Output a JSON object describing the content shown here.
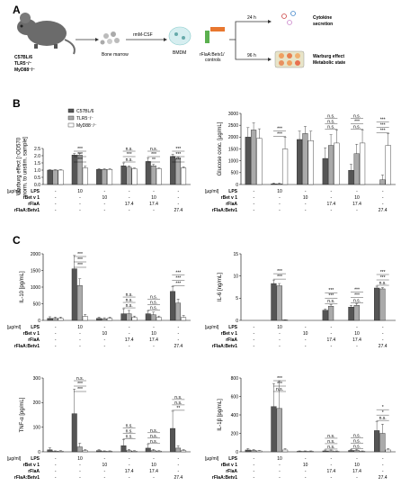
{
  "panels": {
    "a": "A",
    "b": "B",
    "c": "C"
  },
  "schema": {
    "mouse": [
      "C57BL/6",
      "TLR5⁻/⁻",
      "MyD88⁻/⁻"
    ],
    "bone_marrow": "Bone marrow",
    "rmm_csf": "rmM-CSF",
    "bmdm": "BMDM",
    "rflaa_controls": [
      "rFlaA:Betv1/",
      "controls"
    ],
    "t24": "24 h",
    "t96": "96 h",
    "cytokine": [
      "Cytokine",
      "secretion"
    ],
    "warburg": [
      "Warburg effect",
      "Metabolic state"
    ]
  },
  "treat": {
    "unit": "[µg/ml]",
    "rows": [
      "LPS",
      "rBet v 1",
      "rFlaA",
      "rFlaA:Betv1"
    ],
    "values": [
      [
        "-",
        "10",
        "-",
        "-",
        "-"
      ],
      [
        "-",
        "-",
        "10",
        "-",
        "10"
      ],
      [
        "-",
        "-",
        "-",
        "17.4",
        "17.4"
      ],
      [
        "-",
        "-",
        "-",
        "-",
        "-"
      ]
    ],
    "last_values": [
      "-",
      "-",
      "-",
      "27.4"
    ]
  },
  "colors": {
    "c57": "#555555",
    "tlr5": "#aaaaaa",
    "myd88": "#ffffff"
  },
  "legend": [
    "C57BL/6",
    "TLR5⁻/⁻",
    "MyD88⁻/⁻"
  ],
  "chart_data": [
    {
      "type": "bar",
      "id": "warburg",
      "ylabel": [
        "Warburg effect [↑OD570",
        "norm. to unstim. sample]"
      ],
      "ylim": [
        0,
        2.5
      ],
      "yticks": [
        "0.0",
        "0.5",
        "1.0",
        "1.5",
        "2.0",
        "2.5"
      ],
      "groups": 6,
      "series": [
        {
          "name": "C57BL/6",
          "values": [
            1.0,
            2.05,
            1.05,
            1.3,
            1.6,
            1.95
          ],
          "err": [
            0.03,
            0.1,
            0.05,
            0.2,
            0.25,
            0.15
          ]
        },
        {
          "name": "TLR5⁻/⁻",
          "values": [
            1.0,
            2.05,
            1.05,
            1.2,
            1.3,
            1.8
          ],
          "err": [
            0.03,
            0.1,
            0.05,
            0.1,
            0.1,
            0.1
          ]
        },
        {
          "name": "MyD88⁻/⁻",
          "values": [
            1.0,
            1.15,
            1.05,
            1.1,
            1.1,
            1.15
          ],
          "err": [
            0.03,
            0.12,
            0.05,
            0.05,
            0.05,
            0.08
          ]
        }
      ]
    },
    {
      "type": "bar",
      "id": "glucose",
      "ylabel": [
        "Glucose conc. [µg/mL]"
      ],
      "ylim": [
        0,
        3000
      ],
      "yticks": [
        "0",
        "500",
        "1000",
        "1500",
        "2000",
        "2500",
        "3000"
      ],
      "groups": 6,
      "series": [
        {
          "name": "C57BL/6",
          "values": [
            2000,
            30,
            1900,
            1100,
            600,
            0
          ],
          "err": [
            400,
            30,
            350,
            450,
            250,
            0
          ]
        },
        {
          "name": "TLR5⁻/⁻",
          "values": [
            2300,
            30,
            2150,
            1650,
            1300,
            200
          ],
          "err": [
            300,
            30,
            300,
            450,
            400,
            200
          ]
        },
        {
          "name": "MyD88⁻/⁻",
          "values": [
            1950,
            1500,
            1850,
            1750,
            1750,
            1650
          ],
          "err": [
            400,
            500,
            400,
            550,
            550,
            500
          ]
        }
      ]
    },
    {
      "type": "bar",
      "id": "il10",
      "ylabel": [
        "IL-10 [pg/mL]"
      ],
      "ylim": [
        0,
        2000
      ],
      "yticks": [
        "0",
        "500",
        "1000",
        "1500",
        "2000"
      ],
      "groups": 6,
      "series": [
        {
          "name": "C57BL/6",
          "values": [
            60,
            1550,
            60,
            200,
            200,
            870
          ],
          "err": [
            50,
            400,
            40,
            150,
            80,
            150
          ]
        },
        {
          "name": "TLR5⁻/⁻",
          "values": [
            60,
            1050,
            50,
            200,
            170,
            520
          ],
          "err": [
            40,
            200,
            30,
            100,
            80,
            120
          ]
        },
        {
          "name": "MyD88⁻/⁻",
          "values": [
            60,
            120,
            60,
            90,
            90,
            90
          ],
          "err": [
            40,
            60,
            40,
            40,
            40,
            60
          ]
        }
      ]
    },
    {
      "type": "bar",
      "id": "il6",
      "ylabel": [
        "IL-6 [ng/mL]"
      ],
      "ylim": [
        0,
        15
      ],
      "yticks": [
        "0",
        "5",
        "10",
        "15"
      ],
      "groups": 6,
      "series": [
        {
          "name": "C57BL/6",
          "values": [
            0,
            8.3,
            0,
            2.3,
            3.0,
            7.3
          ],
          "err": [
            0,
            0.8,
            0,
            0.3,
            0.4,
            0.4
          ]
        },
        {
          "name": "TLR5⁻/⁻",
          "values": [
            0,
            7.8,
            0,
            3.2,
            3.4,
            7.1
          ],
          "err": [
            0,
            0.5,
            0,
            0.4,
            0.4,
            0.3
          ]
        },
        {
          "name": "MyD88⁻/⁻",
          "values": [
            0,
            0.1,
            0,
            0,
            0,
            0
          ],
          "err": [
            0,
            0.05,
            0,
            0,
            0,
            0
          ]
        }
      ]
    },
    {
      "type": "bar",
      "id": "tnf",
      "ylabel": [
        "TNF-α [pg/mL]"
      ],
      "ylim": [
        0,
        300
      ],
      "yticks": [
        "0",
        "100",
        "200",
        "300"
      ],
      "groups": 6,
      "series": [
        {
          "name": "C57BL/6",
          "values": [
            8,
            155,
            5,
            25,
            15,
            95
          ],
          "err": [
            8,
            100,
            4,
            25,
            15,
            70
          ]
        },
        {
          "name": "TLR5⁻/⁻",
          "values": [
            2,
            20,
            2,
            5,
            5,
            15
          ],
          "err": [
            2,
            15,
            2,
            5,
            5,
            10
          ]
        },
        {
          "name": "MyD88⁻/⁻",
          "values": [
            3,
            5,
            2,
            3,
            3,
            5
          ],
          "err": [
            2,
            4,
            2,
            2,
            2,
            4
          ]
        }
      ]
    },
    {
      "type": "bar",
      "id": "il1b",
      "ylabel": [
        "IL-1β [pg/mL]"
      ],
      "ylim": [
        0,
        800
      ],
      "yticks": [
        "0",
        "200",
        "400",
        "600",
        "800"
      ],
      "groups": 6,
      "series": [
        {
          "name": "C57BL/6",
          "values": [
            20,
            490,
            5,
            10,
            15,
            230
          ],
          "err": [
            15,
            250,
            5,
            10,
            10,
            100
          ]
        },
        {
          "name": "TLR5⁻/⁻",
          "values": [
            15,
            470,
            5,
            10,
            15,
            200
          ],
          "err": [
            10,
            300,
            5,
            10,
            10,
            100
          ]
        },
        {
          "name": "MyD88⁻/⁻",
          "values": [
            10,
            20,
            5,
            5,
            5,
            20
          ],
          "err": [
            5,
            15,
            5,
            5,
            5,
            15
          ]
        }
      ]
    }
  ],
  "significance": {
    "warburg": [
      [
        1,
        [
          "***",
          "***",
          "***"
        ]
      ],
      [
        3,
        [
          "n.s.",
          "***",
          "n.s."
        ]
      ],
      [
        4,
        [
          "**",
          "***",
          "n.s."
        ]
      ],
      [
        5,
        [
          "***",
          "***",
          "***"
        ]
      ]
    ],
    "glucose": [
      [
        1,
        [
          "***",
          "***"
        ]
      ],
      [
        3,
        [
          "n.s.",
          "n.s.",
          "n.s."
        ]
      ],
      [
        4,
        [
          "n.s.",
          "***",
          "n.s."
        ]
      ],
      [
        5,
        [
          "***",
          "***",
          "***"
        ]
      ]
    ],
    "il10": [
      [
        1,
        [
          "***",
          "***",
          "***"
        ]
      ],
      [
        3,
        [
          "n.s.",
          "n.s.",
          "n.s."
        ]
      ],
      [
        4,
        [
          "n.s.",
          "n.s.",
          "n.s."
        ]
      ],
      [
        5,
        [
          "***",
          "***",
          "***"
        ]
      ]
    ],
    "il6": [
      [
        1,
        [
          "***",
          "***"
        ]
      ],
      [
        3,
        [
          "n.s.",
          "***",
          "***"
        ]
      ],
      [
        4,
        [
          "n.s.",
          "***",
          "***"
        ]
      ],
      [
        5,
        [
          "n.s.",
          "***",
          "***"
        ]
      ]
    ],
    "tnf": [
      [
        1,
        [
          "***",
          "***",
          "n.s."
        ]
      ],
      [
        3,
        [
          "n.s.",
          "n.s.",
          "n.s."
        ]
      ],
      [
        4,
        [
          "n.s.",
          "n.s.",
          "n.s."
        ]
      ],
      [
        5,
        [
          "**",
          "n.s.",
          "n.s."
        ]
      ]
    ],
    "il1b": [
      [
        1,
        [
          "n.s.",
          "***",
          "***"
        ]
      ],
      [
        3,
        [
          "n.s.",
          "n.s.",
          "n.s."
        ]
      ],
      [
        4,
        [
          "n.s.",
          "n.s.",
          "n.s."
        ]
      ],
      [
        5,
        [
          "n.s.",
          "*",
          "*"
        ]
      ]
    ]
  }
}
